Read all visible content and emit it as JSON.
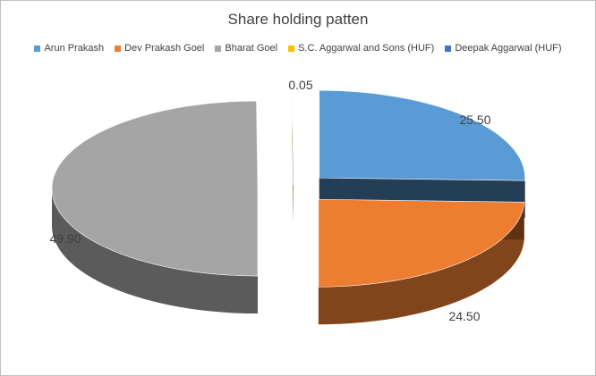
{
  "chart_data": {
    "type": "pie",
    "title": "Share holding patten",
    "legend_position": "top",
    "series": [
      {
        "name": "",
        "slices": [
          {
            "label": "Arun Prakash",
            "value": 25.5,
            "display": "25.50",
            "color": "#5b9bd5"
          },
          {
            "label": "Dev Prakash Goel",
            "value": 24.5,
            "display": "24.50",
            "color": "#ed7d31"
          },
          {
            "label": "Bharat Goel",
            "value": 49.9,
            "display": "49.90",
            "color": "#a5a5a5"
          },
          {
            "label": "S.C. Aggarwal and Sons (HUF)",
            "value": 0.05,
            "display": "0.05",
            "color": "#ffc000"
          },
          {
            "label": "Deepak Aggarwal (HUF)",
            "value": 0.05,
            "display": "",
            "color": "#4472c4"
          }
        ]
      }
    ]
  }
}
